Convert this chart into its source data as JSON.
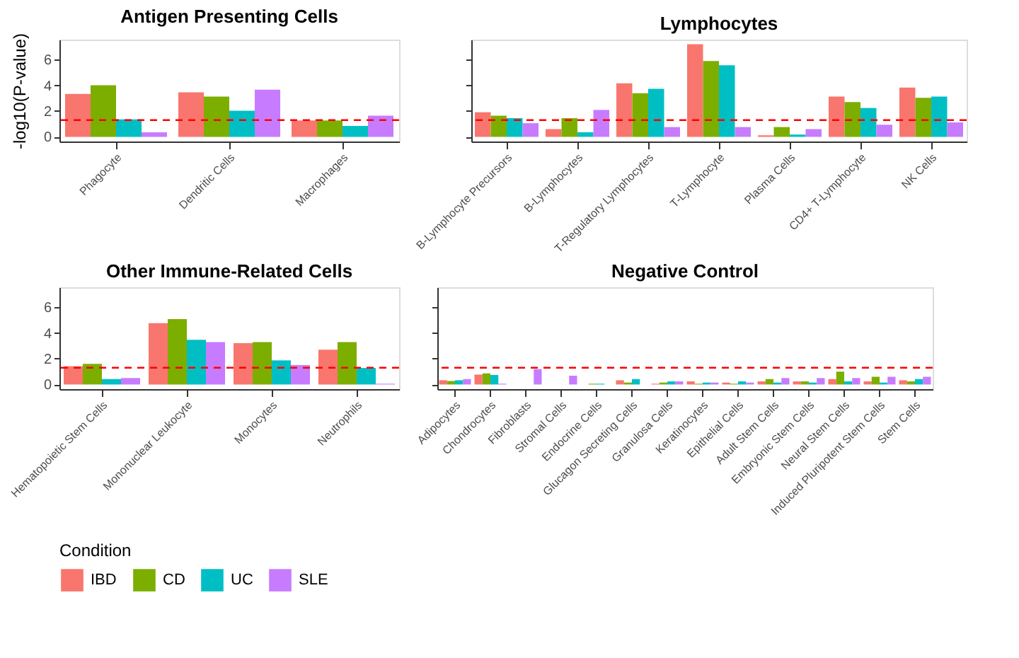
{
  "chart_data": [
    {
      "type": "bar",
      "title": "Antigen Presenting Cells",
      "ylabel": "-log10(P-value)",
      "legend": "bottom",
      "legend_title": "Condition",
      "grid": false,
      "categories": [
        "Phagocyte",
        "Dendritic Cells",
        "Macrophages"
      ],
      "ylim": [
        -0.36,
        7.54
      ],
      "yticks": [
        0,
        2,
        4,
        6
      ],
      "ref_lines": [
        {
          "axis": "y",
          "value": 1.3,
          "color": "#ff0000",
          "line_style": "dashed"
        }
      ],
      "series": [
        {
          "name": "IBD",
          "color": "#f8766d",
          "values": [
            3.33,
            3.45,
            1.27
          ]
        },
        {
          "name": "CD",
          "color": "#7cae00",
          "values": [
            4.0,
            3.12,
            1.27
          ]
        },
        {
          "name": "UC",
          "color": "#00bfc4",
          "values": [
            1.36,
            2.03,
            0.85
          ]
        },
        {
          "name": "SLE",
          "color": "#c77cff",
          "values": [
            0.36,
            3.66,
            1.64
          ]
        }
      ]
    },
    {
      "type": "bar",
      "title": "Lymphocytes",
      "tick_labels": "x",
      "grid": false,
      "categories": [
        "B-Lymphocyte Precursors",
        "B-Lymphocytes",
        "T-Regulatory Lymphocytes",
        "T-Lymphocyte",
        "Plasma Cells",
        "CD4+ T-Lymphocyte",
        "NK Cells"
      ],
      "ylim": [
        -0.36,
        7.54
      ],
      "yticks": [
        0,
        2,
        4,
        6
      ],
      "ref_lines": [
        {
          "axis": "y",
          "value": 1.3,
          "color": "#ff0000",
          "line_style": "dashed"
        }
      ],
      "series": [
        {
          "name": "IBD",
          "color": "#f8766d",
          "values": [
            1.91,
            0.6,
            4.15,
            7.18,
            0.12,
            3.12,
            3.82
          ]
        },
        {
          "name": "CD",
          "color": "#7cae00",
          "values": [
            1.64,
            1.45,
            3.39,
            5.88,
            0.76,
            2.7,
            3.03
          ]
        },
        {
          "name": "UC",
          "color": "#00bfc4",
          "values": [
            1.45,
            0.36,
            3.73,
            5.55,
            0.18,
            2.24,
            3.12
          ]
        },
        {
          "name": "SLE",
          "color": "#c77cff",
          "values": [
            1.06,
            2.09,
            0.76,
            0.76,
            0.6,
            0.94,
            1.12
          ]
        }
      ]
    },
    {
      "type": "bar",
      "title": "Other Immune-Related Cells",
      "grid": false,
      "categories": [
        "Hematopoietic Stem Cells",
        "Mononuclear Leukocyte",
        "Monocytes",
        "Neutrophils"
      ],
      "ylim": [
        -0.36,
        7.54
      ],
      "yticks": [
        0,
        2,
        4,
        6
      ],
      "ref_lines": [
        {
          "axis": "y",
          "value": 1.3,
          "color": "#ff0000",
          "line_style": "dashed"
        }
      ],
      "series": [
        {
          "name": "IBD",
          "color": "#f8766d",
          "values": [
            1.42,
            4.75,
            3.2,
            2.7
          ]
        },
        {
          "name": "CD",
          "color": "#7cae00",
          "values": [
            1.6,
            5.07,
            3.29,
            3.29
          ]
        },
        {
          "name": "UC",
          "color": "#00bfc4",
          "values": [
            0.42,
            3.47,
            1.87,
            1.28
          ]
        },
        {
          "name": "SLE",
          "color": "#c77cff",
          "values": [
            0.5,
            3.29,
            1.51,
            0.06
          ]
        }
      ]
    },
    {
      "type": "bar",
      "title": "Negative Control",
      "tick_labels": "x",
      "grid": false,
      "categories": [
        "Adipocytes",
        "Chondrocytes",
        "Fibroblasts",
        "Stromal Cells",
        "Endocrine Cells",
        "Glucagon Secreting Cells",
        "Granulosa Cells",
        "Keratinocytes",
        "Epithelial Cells",
        "Adult Stem Cells",
        "Embryonic Stem Cells",
        "Neural Stem Cells",
        "Induced Pluripotent Stem Cells",
        "Stem Cells"
      ],
      "ylim": [
        -0.36,
        7.54
      ],
      "yticks": [
        0,
        2,
        4,
        6
      ],
      "ref_lines": [
        {
          "axis": "y",
          "value": 1.3,
          "color": "#ff0000",
          "line_style": "dashed"
        }
      ],
      "series": [
        {
          "name": "IBD",
          "color": "#f8766d",
          "values": [
            0.33,
            0.77,
            0,
            0,
            0,
            0.33,
            0.06,
            0.24,
            0.15,
            0.24,
            0.24,
            0.42,
            0.24,
            0.33
          ]
        },
        {
          "name": "CD",
          "color": "#7cae00",
          "values": [
            0.27,
            0.86,
            0,
            0,
            0.06,
            0.15,
            0.15,
            0.06,
            0.06,
            0.42,
            0.24,
            1.0,
            0.6,
            0.24
          ]
        },
        {
          "name": "UC",
          "color": "#00bfc4",
          "values": [
            0.33,
            0.74,
            0,
            0,
            0.06,
            0.42,
            0.24,
            0.15,
            0.24,
            0.15,
            0.15,
            0.24,
            0.15,
            0.42
          ]
        },
        {
          "name": "SLE",
          "color": "#c77cff",
          "values": [
            0.42,
            0.06,
            1.19,
            0.68,
            0,
            0,
            0.24,
            0.15,
            0.15,
            0.5,
            0.5,
            0.5,
            0.6,
            0.6
          ]
        }
      ]
    }
  ]
}
